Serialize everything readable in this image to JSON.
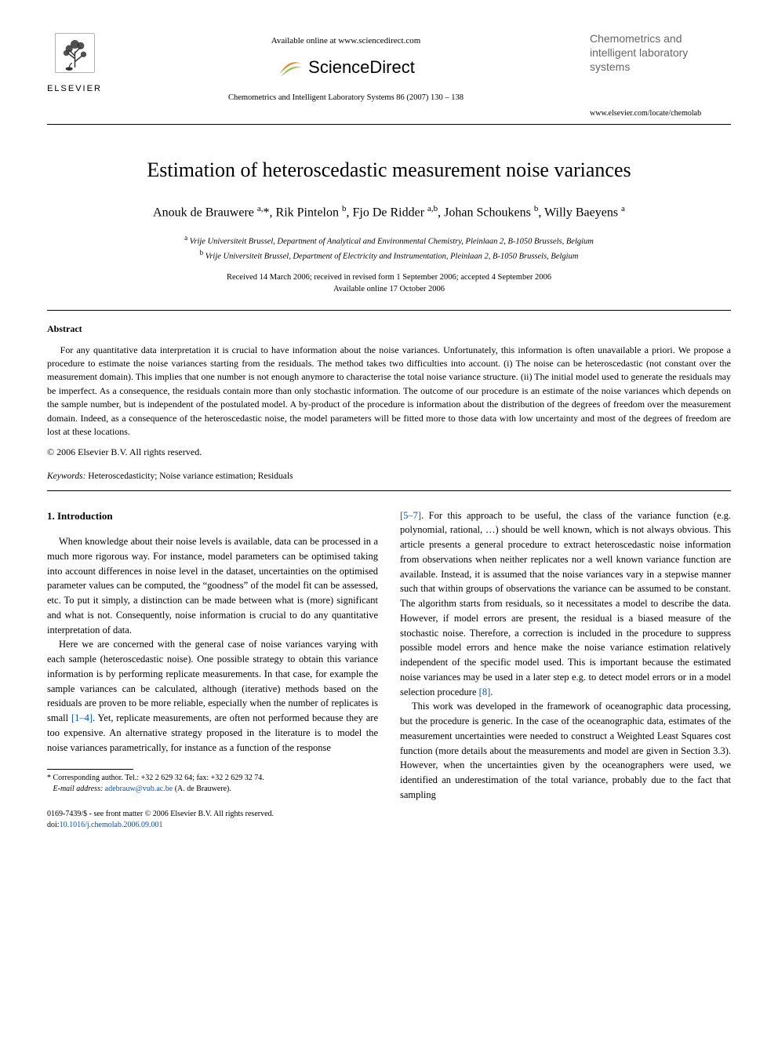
{
  "header": {
    "available_online": "Available online at www.sciencedirect.com",
    "sciencedirect_label": "ScienceDirect",
    "journal_ref": "Chemometrics and Intelligent Laboratory Systems 86 (2007) 130 – 138",
    "elsevier_label": "ELSEVIER",
    "journal_name_lines": "Chemometrics and intelligent laboratory systems",
    "journal_url": "www.elsevier.com/locate/chemolab"
  },
  "title": "Estimation of heteroscedastic measurement noise variances",
  "authors_html": "Anouk de Brauwere <sup>a,</sup>*, Rik Pintelon <sup>b</sup>, Fjo De Ridder <sup>a,b</sup>, Johan Schoukens <sup>b</sup>, Willy Baeyens <sup>a</sup>",
  "affiliations": {
    "a": "Vrije Universiteit Brussel, Department of Analytical and Environmental Chemistry, Pleinlaan 2, B-1050 Brussels, Belgium",
    "b": "Vrije Universiteit Brussel, Department of Electricity and Instrumentation, Pleinlaan 2, B-1050 Brussels, Belgium"
  },
  "dates": {
    "received": "Received 14 March 2006; received in revised form 1 September 2006; accepted 4 September 2006",
    "online": "Available online 17 October 2006"
  },
  "abstract": {
    "heading": "Abstract",
    "body": "For any quantitative data interpretation it is crucial to have information about the noise variances. Unfortunately, this information is often unavailable a priori. We propose a procedure to estimate the noise variances starting from the residuals. The method takes two difficulties into account. (i) The noise can be heteroscedastic (not constant over the measurement domain). This implies that one number is not enough anymore to characterise the total noise variance structure. (ii) The initial model used to generate the residuals may be imperfect. As a consequence, the residuals contain more than only stochastic information. The outcome of our procedure is an estimate of the noise variances which depends on the sample number, but is independent of the postulated model. A by-product of the procedure is information about the distribution of the degrees of freedom over the measurement domain. Indeed, as a consequence of the heteroscedastic noise, the model parameters will be fitted more to those data with low uncertainty and most of the degrees of freedom are lost at these locations.",
    "copyright": "© 2006 Elsevier B.V. All rights reserved."
  },
  "keywords": {
    "label": "Keywords:",
    "text": " Heteroscedasticity; Noise variance estimation; Residuals"
  },
  "intro": {
    "heading": "1. Introduction",
    "left_p1": "When knowledge about their noise levels is available, data can be processed in a much more rigorous way. For instance, model parameters can be optimised taking into account differences in noise level in the dataset, uncertainties on the optimised parameter values can be computed, the “goodness” of the model fit can be assessed, etc. To put it simply, a distinction can be made between what is (more) significant and what is not. Consequently, noise information is crucial to do any quantitative interpretation of data.",
    "left_p2_a": "Here we are concerned with the general case of noise variances varying with each sample (heteroscedastic noise). One possible strategy to obtain this variance information is by performing replicate measurements. In that case, for example the sample variances can be calculated, although (iterative) methods based on the residuals are proven to be more reliable, especially when the number of replicates is small ",
    "left_p2_ref1": "[1–4]",
    "left_p2_b": ". Yet, replicate measurements, are often not performed because they are too expensive. An alternative strategy proposed in the literature is to model the noise variances parametrically, for instance as a function of the response",
    "right_p1_ref1": "[5–7]",
    "right_p1_a": ". For this approach to be useful, the class of the variance function (e.g. polynomial, rational, …) should be well known, which is not always obvious. This article presents a general procedure to extract heteroscedastic noise information from observations when neither replicates nor a well known variance function are available. Instead, it is assumed that the noise variances vary in a stepwise manner such that within groups of observations the variance can be assumed to be constant. The algorithm starts from residuals, so it necessitates a model to describe the data. However, if model errors are present, the residual is a biased measure of the stochastic noise. Therefore, a correction is included in the procedure to suppress possible model errors and hence make the noise variance estimation relatively independent of the specific model used. This is important because the estimated noise variances may be used in a later step e.g. to detect model errors or in a model selection procedure ",
    "right_p1_ref2": "[8]",
    "right_p1_b": ".",
    "right_p2": "This work was developed in the framework of oceanographic data processing, but the procedure is generic. In the case of the oceanographic data, estimates of the measurement uncertainties were needed to construct a Weighted Least Squares cost function (more details about the measurements and model are given in Section 3.3). However, when the uncertainties given by the oceanographers were used, we identified an underestimation of the total variance, probably due to the fact that sampling"
  },
  "footnote": {
    "star": "* Corresponding author. Tel.: +32 2 629 32 64; fax: +32 2 629 32 74.",
    "email_label": "E-mail address:",
    "email": "adebrauw@vub.ac.be",
    "email_tail": " (A. de Brauwere)."
  },
  "bottom": {
    "issn": "0169-7439/$ - see front matter © 2006 Elsevier B.V. All rights reserved.",
    "doi_label": "doi:",
    "doi": "10.1016/j.chemolab.2006.09.001"
  },
  "colors": {
    "text": "#000000",
    "link": "#0050c8",
    "journal_header_gray": "#666666",
    "elsevier_orange": "#ef8200",
    "sd_orange": "#f58220",
    "sd_green": "#8bc53f"
  }
}
